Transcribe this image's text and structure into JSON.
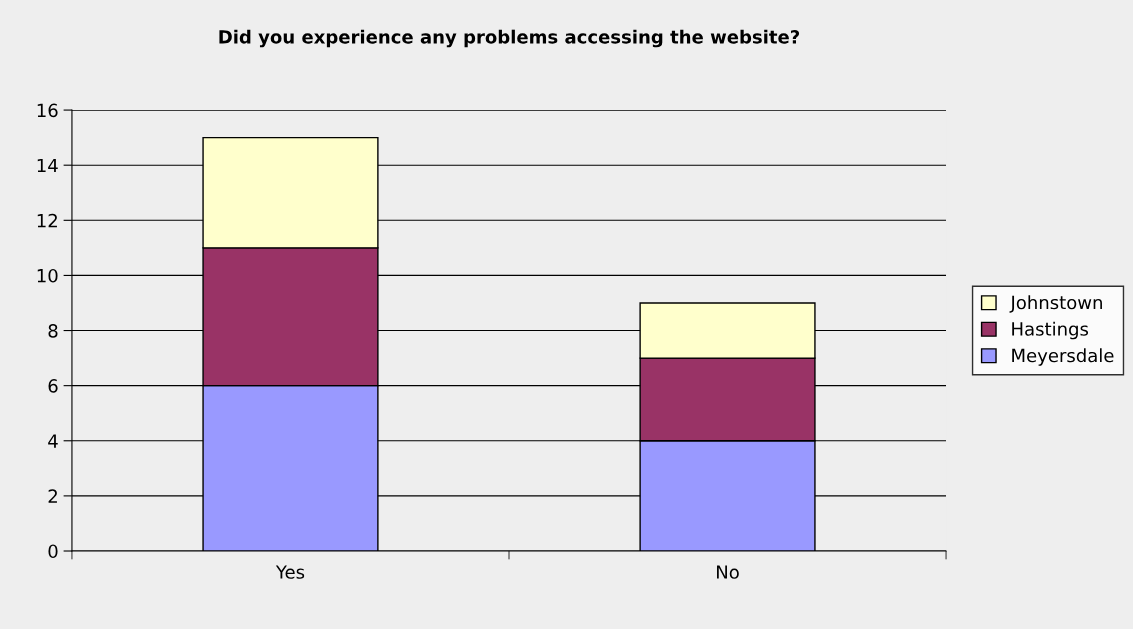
{
  "chart_data": {
    "type": "bar",
    "title": "Did you experience any problems accessing the website?",
    "categories": [
      "Yes",
      "No"
    ],
    "stacked": true,
    "series": [
      {
        "name": "Meyersdale",
        "color": "#9999ff",
        "values": [
          6,
          4
        ]
      },
      {
        "name": "Hastings",
        "color": "#993366",
        "values": [
          5,
          3
        ]
      },
      {
        "name": "Johnstown",
        "color": "#ffffcc",
        "values": [
          4,
          2
        ]
      }
    ],
    "ylim": [
      0,
      16
    ],
    "yticks": [
      0,
      2,
      4,
      6,
      8,
      10,
      12,
      14,
      16
    ],
    "grid": "y",
    "legend": "right"
  }
}
